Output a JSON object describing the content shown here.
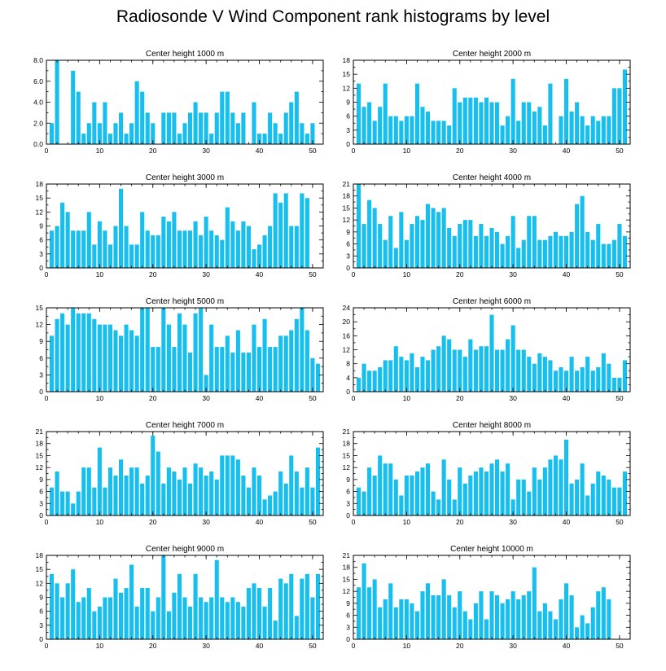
{
  "figure_title": "Radiosonde V Wind Component rank histograms by level",
  "colors": {
    "bar": "#17bfef",
    "frame": "#000000",
    "background": "#ffffff"
  },
  "chart_data": [
    {
      "type": "bar",
      "title": "Center height 1000 m",
      "xlim": [
        0,
        52
      ],
      "ylim": [
        0,
        8
      ],
      "xticks": [
        0,
        10,
        20,
        30,
        40,
        50
      ],
      "yticks": [
        0,
        2,
        4,
        6,
        8
      ],
      "ytick_labels": [
        "0.0",
        "2.0",
        "4.0",
        "6.0",
        "8.0"
      ],
      "values": [
        2,
        8,
        0,
        0,
        7,
        5,
        1,
        2,
        4,
        2,
        4,
        1,
        2,
        3,
        1,
        2,
        6,
        5,
        3,
        2,
        0,
        3,
        3,
        3,
        1,
        2,
        3,
        4,
        3,
        3,
        1,
        3,
        5,
        5,
        3,
        2,
        3,
        0,
        4,
        1,
        1,
        3,
        2,
        1,
        3,
        4,
        5,
        2,
        1,
        2,
        0
      ]
    },
    {
      "type": "bar",
      "title": "Center height 2000 m",
      "xlim": [
        0,
        52
      ],
      "ylim": [
        0,
        18
      ],
      "xticks": [
        0,
        10,
        20,
        30,
        40,
        50
      ],
      "yticks": [
        0,
        3,
        6,
        9,
        12,
        15,
        18
      ],
      "ytick_labels": [
        "0",
        "3",
        "6",
        "9",
        "12",
        "15",
        "18"
      ],
      "values": [
        13,
        8,
        9,
        5,
        8,
        13,
        6,
        6,
        5,
        6,
        6,
        13,
        8,
        7,
        5,
        5,
        5,
        4,
        12,
        9,
        10,
        10,
        10,
        9,
        10,
        9,
        9,
        4,
        6,
        14,
        5,
        9,
        9,
        7,
        8,
        4,
        13,
        0,
        6,
        14,
        7,
        9,
        6,
        4,
        6,
        5,
        6,
        6,
        12,
        12,
        16
      ]
    },
    {
      "type": "bar",
      "title": "Center height 3000 m",
      "xlim": [
        0,
        52
      ],
      "ylim": [
        0,
        18
      ],
      "xticks": [
        0,
        10,
        20,
        30,
        40,
        50
      ],
      "yticks": [
        0,
        3,
        6,
        9,
        12,
        15,
        18
      ],
      "ytick_labels": [
        "0",
        "3",
        "6",
        "9",
        "12",
        "15",
        "18"
      ],
      "values": [
        8,
        9,
        14,
        12,
        8,
        8,
        8,
        12,
        5,
        10,
        8,
        5,
        9,
        17,
        9,
        5,
        5,
        12,
        8,
        7,
        7,
        11,
        10,
        12,
        8,
        8,
        8,
        10,
        7,
        11,
        8,
        7,
        6,
        13,
        10,
        8,
        10,
        9,
        4,
        5,
        7,
        9,
        16,
        14,
        16,
        9,
        9,
        16,
        15,
        0,
        0
      ]
    },
    {
      "type": "bar",
      "title": "Center height 4000 m",
      "xlim": [
        0,
        52
      ],
      "ylim": [
        0,
        21
      ],
      "xticks": [
        0,
        10,
        20,
        30,
        40,
        50
      ],
      "yticks": [
        0,
        3,
        6,
        9,
        12,
        15,
        18,
        21
      ],
      "ytick_labels": [
        "0",
        "3",
        "6",
        "9",
        "12",
        "15",
        "18",
        "21"
      ],
      "values": [
        21,
        11,
        17,
        15,
        11,
        7,
        13,
        5,
        14,
        7,
        11,
        13,
        12,
        16,
        15,
        14,
        15,
        10,
        8,
        11,
        12,
        12,
        8,
        11,
        8,
        10,
        9,
        6,
        8,
        13,
        5,
        7,
        13,
        13,
        7,
        7,
        8,
        9,
        8,
        8,
        9,
        16,
        18,
        9,
        7,
        11,
        6,
        6,
        7,
        11,
        8
      ]
    },
    {
      "type": "bar",
      "title": "Center height 5000 m",
      "xlim": [
        0,
        52
      ],
      "ylim": [
        0,
        15
      ],
      "xticks": [
        0,
        10,
        20,
        30,
        40,
        50
      ],
      "yticks": [
        0,
        3,
        6,
        9,
        12,
        15
      ],
      "ytick_labels": [
        "0",
        "3",
        "6",
        "9",
        "12",
        "15"
      ],
      "values": [
        10,
        13,
        14,
        12,
        15,
        14,
        14,
        14,
        13,
        12,
        12,
        12,
        11,
        10,
        12,
        11,
        10,
        15,
        15,
        8,
        8,
        15,
        12,
        8,
        14,
        12,
        7,
        14,
        15,
        3,
        12,
        8,
        8,
        10,
        7,
        11,
        7,
        7,
        12,
        8,
        13,
        8,
        8,
        10,
        10,
        11,
        13,
        15,
        11,
        6,
        5
      ]
    },
    {
      "type": "bar",
      "title": "Center height 6000 m",
      "xlim": [
        0,
        52
      ],
      "ylim": [
        0,
        24
      ],
      "xticks": [
        0,
        10,
        20,
        30,
        40,
        50
      ],
      "yticks": [
        0,
        4,
        8,
        12,
        16,
        20,
        24
      ],
      "ytick_labels": [
        "0",
        "4",
        "8",
        "12",
        "16",
        "20",
        "24"
      ],
      "values": [
        4,
        8,
        6,
        6,
        7,
        9,
        9,
        13,
        10,
        9,
        11,
        7,
        10,
        9,
        12,
        13,
        16,
        15,
        12,
        12,
        10,
        15,
        12,
        13,
        13,
        22,
        12,
        12,
        15,
        19,
        12,
        12,
        10,
        8,
        11,
        10,
        9,
        6,
        7,
        6,
        10,
        6,
        7,
        10,
        6,
        7,
        11,
        8,
        4,
        4,
        9
      ]
    },
    {
      "type": "bar",
      "title": "Center height 7000 m",
      "xlim": [
        0,
        52
      ],
      "ylim": [
        0,
        21
      ],
      "xticks": [
        0,
        10,
        20,
        30,
        40,
        50
      ],
      "yticks": [
        0,
        3,
        6,
        9,
        12,
        15,
        18,
        21
      ],
      "ytick_labels": [
        "0",
        "3",
        "6",
        "9",
        "12",
        "15",
        "18",
        "21"
      ],
      "values": [
        7,
        11,
        6,
        6,
        3,
        6,
        12,
        12,
        7,
        17,
        7,
        12,
        10,
        14,
        10,
        12,
        12,
        8,
        10,
        20,
        16,
        8,
        12,
        11,
        9,
        12,
        8,
        13,
        12,
        10,
        11,
        9,
        15,
        15,
        15,
        14,
        10,
        7,
        12,
        10,
        4,
        5,
        6,
        11,
        8,
        15,
        11,
        7,
        12,
        7,
        17
      ]
    },
    {
      "type": "bar",
      "title": "Center height 8000 m",
      "xlim": [
        0,
        52
      ],
      "ylim": [
        0,
        21
      ],
      "xticks": [
        0,
        10,
        20,
        30,
        40,
        50
      ],
      "yticks": [
        0,
        3,
        6,
        9,
        12,
        15,
        18,
        21
      ],
      "ytick_labels": [
        "0",
        "3",
        "6",
        "9",
        "12",
        "15",
        "18",
        "21"
      ],
      "values": [
        7,
        6,
        12,
        10,
        15,
        13,
        13,
        9,
        5,
        10,
        10,
        11,
        12,
        13,
        6,
        4,
        14,
        9,
        4,
        12,
        8,
        10,
        11,
        12,
        11,
        13,
        14,
        11,
        13,
        4,
        9,
        9,
        6,
        12,
        9,
        12,
        14,
        15,
        14,
        19,
        8,
        9,
        13,
        5,
        8,
        11,
        10,
        9,
        7,
        7,
        11
      ]
    },
    {
      "type": "bar",
      "title": "Center height 9000 m",
      "xlim": [
        0,
        52
      ],
      "ylim": [
        0,
        18
      ],
      "xticks": [
        0,
        10,
        20,
        30,
        40,
        50
      ],
      "yticks": [
        0,
        3,
        6,
        9,
        12,
        15,
        18
      ],
      "ytick_labels": [
        "0",
        "3",
        "6",
        "9",
        "12",
        "15",
        "18"
      ],
      "values": [
        14,
        12,
        9,
        12,
        15,
        8,
        9,
        11,
        6,
        7,
        9,
        9,
        13,
        10,
        11,
        16,
        7,
        11,
        11,
        6,
        9,
        18,
        6,
        10,
        14,
        9,
        7,
        14,
        9,
        8,
        9,
        17,
        9,
        8,
        9,
        8,
        7,
        11,
        12,
        11,
        7,
        11,
        4,
        13,
        12,
        14,
        5,
        13,
        14,
        9,
        14
      ]
    },
    {
      "type": "bar",
      "title": "Center height 10000 m",
      "xlim": [
        0,
        52
      ],
      "ylim": [
        0,
        21
      ],
      "xticks": [
        0,
        10,
        20,
        30,
        40,
        50
      ],
      "yticks": [
        0,
        3,
        6,
        9,
        12,
        15,
        18,
        21
      ],
      "ytick_labels": [
        "0",
        "3",
        "6",
        "9",
        "12",
        "15",
        "18",
        "21"
      ],
      "values": [
        13,
        19,
        13,
        15,
        8,
        10,
        14,
        8,
        10,
        10,
        9,
        7,
        12,
        14,
        11,
        11,
        15,
        11,
        8,
        12,
        7,
        5,
        9,
        12,
        5,
        12,
        11,
        9,
        10,
        12,
        10,
        11,
        12,
        18,
        7,
        9,
        7,
        5,
        10,
        14,
        11,
        3,
        6,
        4,
        8,
        12,
        13,
        10,
        0,
        0,
        0
      ]
    }
  ]
}
